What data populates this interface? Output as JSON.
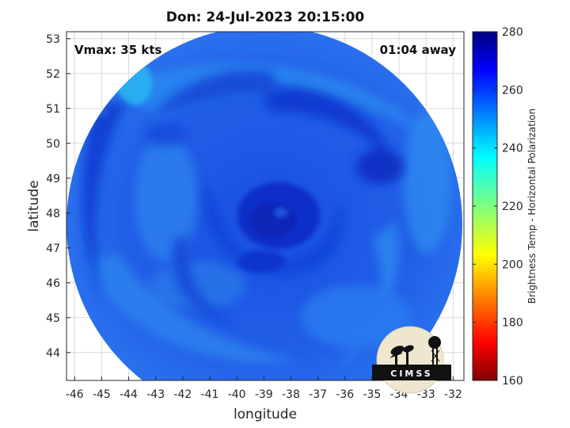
{
  "title": "Don: 24-Jul-2023 20:15:00",
  "vmax_label": "Vmax: 35 kts",
  "time_offset": "01:04 away",
  "axes": {
    "xlabel": "longitude",
    "ylabel": "latitude",
    "x_ticks": [
      "-46",
      "-45",
      "-44",
      "-43",
      "-42",
      "-41",
      "-40",
      "-39",
      "-38",
      "-37",
      "-36",
      "-35",
      "-34",
      "-33",
      "-32"
    ],
    "y_ticks": [
      "53",
      "52",
      "51",
      "50",
      "49",
      "48",
      "47",
      "46",
      "45",
      "44"
    ],
    "xlim": [
      -46.3,
      -31.6
    ],
    "ylim": [
      43.2,
      53.2
    ],
    "grid": true
  },
  "colorbar": {
    "label": "Brightness Temp - Horizontal Polarization",
    "ticks": [
      "280",
      "260",
      "240",
      "220",
      "200",
      "180",
      "160"
    ],
    "range": [
      160,
      280
    ],
    "colormap": "jet"
  },
  "storm_center": {
    "lon": -38.8,
    "lat": 47.9
  },
  "logo": {
    "text": "CIMSS"
  },
  "colors": {
    "swath_base": "#1f5fe6",
    "swath_dark": "#0b2fc8",
    "swath_light": "#2e90f0",
    "grid": "#d9d9d9"
  }
}
